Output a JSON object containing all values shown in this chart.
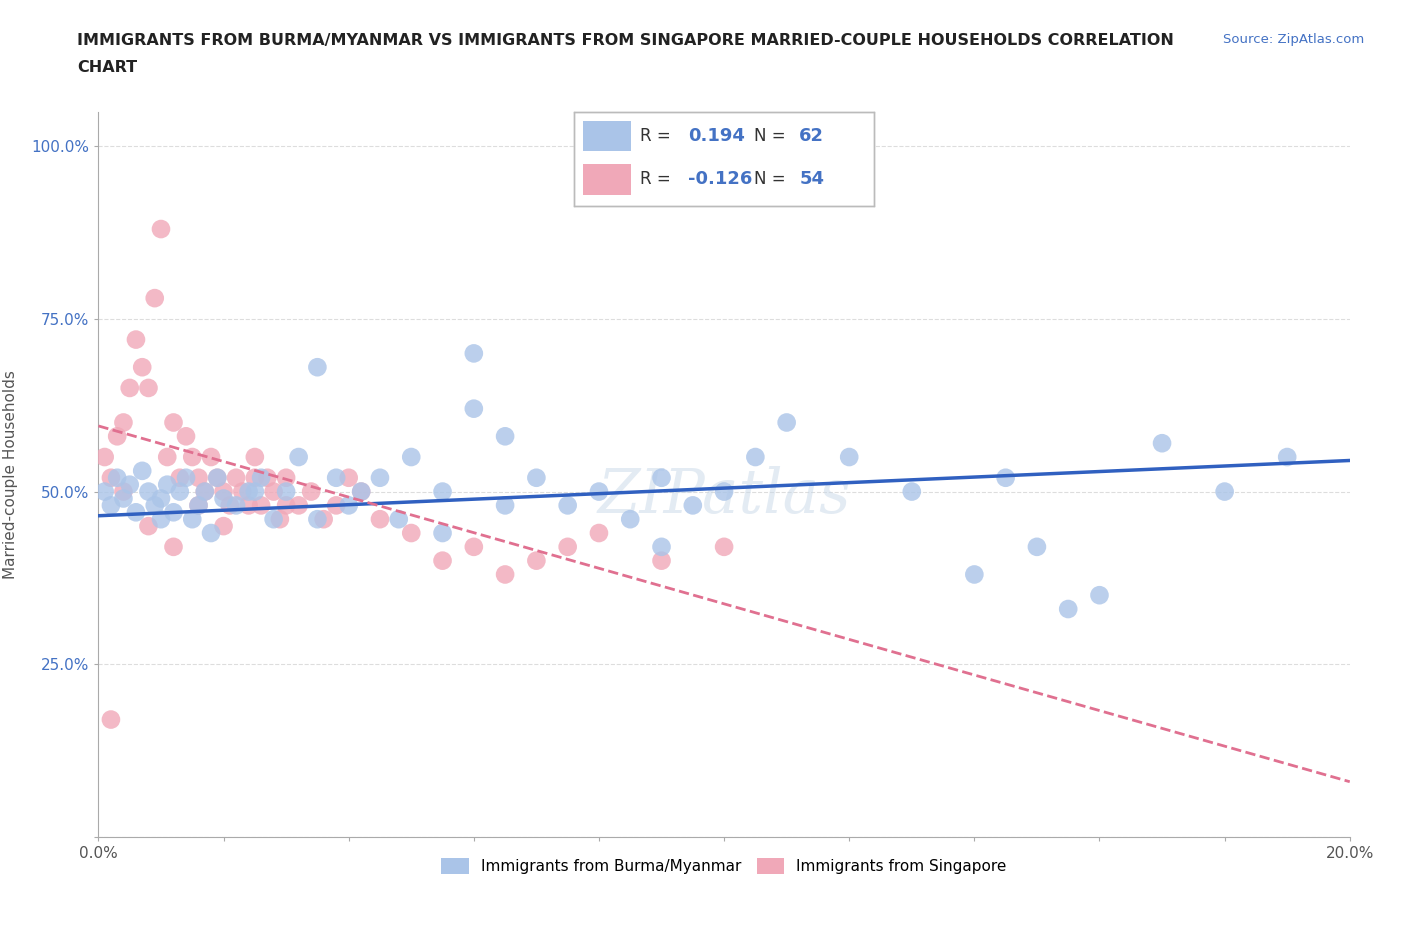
{
  "title_line1": "IMMIGRANTS FROM BURMA/MYANMAR VS IMMIGRANTS FROM SINGAPORE MARRIED-COUPLE HOUSEHOLDS CORRELATION",
  "title_line2": "CHART",
  "source_text": "Source: ZipAtlas.com",
  "ylabel": "Married-couple Households",
  "xlim": [
    0.0,
    0.2
  ],
  "ylim": [
    0.0,
    1.05
  ],
  "xticks": [
    0.0,
    0.02,
    0.04,
    0.06,
    0.08,
    0.1,
    0.12,
    0.14,
    0.16,
    0.18,
    0.2
  ],
  "xticklabels": [
    "0.0%",
    "",
    "",
    "",
    "",
    "",
    "",
    "",
    "",
    "",
    "20.0%"
  ],
  "ytick_positions": [
    0.0,
    0.25,
    0.5,
    0.75,
    1.0
  ],
  "yticklabels": [
    "",
    "25.0%",
    "50.0%",
    "75.0%",
    "100.0%"
  ],
  "grid_color": "#dddddd",
  "legend_R_blue": "0.194",
  "legend_N_blue": "62",
  "legend_R_pink": "-0.126",
  "legend_N_pink": "54",
  "color_blue": "#aac4e8",
  "color_pink": "#f0a8b8",
  "line_color_blue": "#3060c0",
  "line_color_pink": "#e07090",
  "title_color": "#222222",
  "axis_label_color": "#4472c4",
  "ylabel_color": "#555555",
  "blue_scatter_x": [
    0.001,
    0.002,
    0.003,
    0.004,
    0.005,
    0.006,
    0.007,
    0.008,
    0.009,
    0.01,
    0.011,
    0.012,
    0.013,
    0.014,
    0.015,
    0.016,
    0.017,
    0.018,
    0.019,
    0.02,
    0.022,
    0.024,
    0.026,
    0.028,
    0.03,
    0.032,
    0.035,
    0.038,
    0.04,
    0.042,
    0.045,
    0.048,
    0.05,
    0.055,
    0.06,
    0.065,
    0.07,
    0.075,
    0.08,
    0.085,
    0.09,
    0.095,
    0.1,
    0.105,
    0.11,
    0.12,
    0.13,
    0.14,
    0.15,
    0.16,
    0.17,
    0.18,
    0.19,
    0.055,
    0.065,
    0.09,
    0.145,
    0.155,
    0.01,
    0.025,
    0.035,
    0.06
  ],
  "blue_scatter_y": [
    0.5,
    0.48,
    0.52,
    0.49,
    0.51,
    0.47,
    0.53,
    0.5,
    0.48,
    0.49,
    0.51,
    0.47,
    0.5,
    0.52,
    0.46,
    0.48,
    0.5,
    0.44,
    0.52,
    0.49,
    0.48,
    0.5,
    0.52,
    0.46,
    0.5,
    0.55,
    0.68,
    0.52,
    0.48,
    0.5,
    0.52,
    0.46,
    0.55,
    0.5,
    0.62,
    0.58,
    0.52,
    0.48,
    0.5,
    0.46,
    0.52,
    0.48,
    0.5,
    0.55,
    0.6,
    0.55,
    0.5,
    0.38,
    0.42,
    0.35,
    0.57,
    0.5,
    0.55,
    0.44,
    0.48,
    0.42,
    0.52,
    0.33,
    0.46,
    0.5,
    0.46,
    0.7
  ],
  "pink_scatter_x": [
    0.001,
    0.002,
    0.003,
    0.004,
    0.005,
    0.006,
    0.007,
    0.008,
    0.009,
    0.01,
    0.011,
    0.012,
    0.013,
    0.014,
    0.015,
    0.016,
    0.017,
    0.018,
    0.019,
    0.02,
    0.021,
    0.022,
    0.023,
    0.024,
    0.025,
    0.026,
    0.027,
    0.028,
    0.029,
    0.03,
    0.032,
    0.034,
    0.036,
    0.038,
    0.04,
    0.042,
    0.045,
    0.05,
    0.055,
    0.06,
    0.065,
    0.07,
    0.075,
    0.08,
    0.09,
    0.1,
    0.004,
    0.008,
    0.012,
    0.016,
    0.02,
    0.025,
    0.03,
    0.002
  ],
  "pink_scatter_y": [
    0.55,
    0.52,
    0.58,
    0.6,
    0.65,
    0.72,
    0.68,
    0.65,
    0.78,
    0.88,
    0.55,
    0.6,
    0.52,
    0.58,
    0.55,
    0.52,
    0.5,
    0.55,
    0.52,
    0.5,
    0.48,
    0.52,
    0.5,
    0.48,
    0.55,
    0.48,
    0.52,
    0.5,
    0.46,
    0.52,
    0.48,
    0.5,
    0.46,
    0.48,
    0.52,
    0.5,
    0.46,
    0.44,
    0.4,
    0.42,
    0.38,
    0.4,
    0.42,
    0.44,
    0.4,
    0.42,
    0.5,
    0.45,
    0.42,
    0.48,
    0.45,
    0.52,
    0.48,
    0.17
  ],
  "blue_trend_x": [
    0.0,
    0.2
  ],
  "blue_trend_y": [
    0.465,
    0.545
  ],
  "pink_trend_x": [
    0.0,
    0.2
  ],
  "pink_trend_y": [
    0.595,
    0.08
  ],
  "legend_label_blue": "Immigrants from Burma/Myanmar",
  "legend_label_pink": "Immigrants from Singapore"
}
